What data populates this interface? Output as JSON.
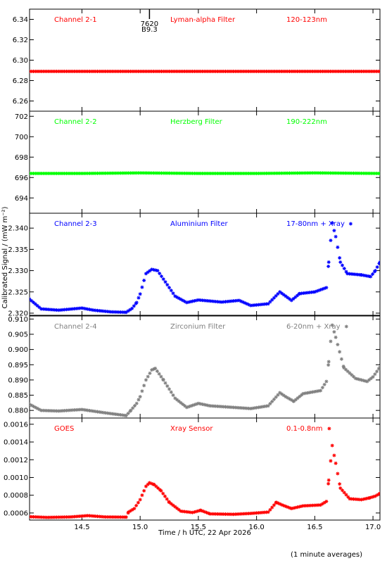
{
  "chart_data": {
    "type": "scatter",
    "xlim": [
      14.05,
      17.06
    ],
    "x_ticks": [
      14.5,
      15.0,
      15.5,
      16.0,
      16.5,
      17.0
    ],
    "x_tick_labels": [
      "14.5",
      "15.0",
      "15.5",
      "16.0",
      "16.5",
      "17.0"
    ],
    "xlabel": "Time / h UTC, 22 Apr 2026",
    "ylabel": "Calibrated Signal / (mW m⁻²)",
    "note": "(1 minute averages)",
    "marker": "asterisk",
    "grid": false,
    "panels": [
      {
        "name": "Channel 2-1",
        "filter": "Lyman-alpha Filter",
        "band": "120-123nm",
        "color": "#ff0000",
        "ylim": [
          6.25,
          6.35
        ],
        "y_ticks": [
          6.26,
          6.28,
          6.3,
          6.32,
          6.34
        ],
        "y_tick_labels": [
          "6.26",
          "6.28",
          "6.30",
          "6.32",
          "6.34"
        ],
        "flare_marker": {
          "x": 15.08,
          "label_top": "7620",
          "label_bottom": "B9.3"
        },
        "series": [
          [
            14.05,
            6.289
          ],
          [
            14.5,
            6.289
          ],
          [
            15.0,
            6.289
          ],
          [
            15.5,
            6.289
          ],
          [
            16.0,
            6.289
          ],
          [
            16.5,
            6.289
          ],
          [
            17.06,
            6.289
          ]
        ]
      },
      {
        "name": "Channel 2-2",
        "filter": "Herzberg Filter",
        "band": "190-222nm",
        "color": "#00ff00",
        "ylim": [
          692.5,
          702.5
        ],
        "y_ticks": [
          694,
          696,
          698,
          700,
          702
        ],
        "y_tick_labels": [
          "694",
          "696",
          "698",
          "700",
          "702"
        ],
        "series": [
          [
            14.05,
            696.4
          ],
          [
            14.5,
            696.4
          ],
          [
            15.0,
            696.45
          ],
          [
            15.5,
            696.4
          ],
          [
            16.0,
            696.4
          ],
          [
            16.5,
            696.45
          ],
          [
            17.06,
            696.4
          ]
        ]
      },
      {
        "name": "Channel 2-3",
        "filter": "Aluminium Filter",
        "band": "17-80nm + Xray",
        "color": "#0000ff",
        "ylim": [
          2.3195,
          2.3435
        ],
        "y_ticks": [
          2.32,
          2.325,
          2.33,
          2.335,
          2.34
        ],
        "y_tick_labels": [
          "2.320",
          "2.325",
          "2.330",
          "2.335",
          "2.340"
        ],
        "series": [
          [
            14.05,
            2.3233
          ],
          [
            14.15,
            2.321
          ],
          [
            14.3,
            2.3207
          ],
          [
            14.5,
            2.3212
          ],
          [
            14.6,
            2.3207
          ],
          [
            14.75,
            2.3203
          ],
          [
            14.88,
            2.3202
          ],
          [
            14.93,
            2.3211
          ],
          [
            14.97,
            2.3225
          ],
          [
            15.0,
            2.3245
          ],
          [
            15.05,
            2.3293
          ],
          [
            15.1,
            2.3303
          ],
          [
            15.15,
            2.33
          ],
          [
            15.2,
            2.328
          ],
          [
            15.25,
            2.326
          ],
          [
            15.3,
            2.324
          ],
          [
            15.4,
            2.3225
          ],
          [
            15.5,
            2.3231
          ],
          [
            15.7,
            2.3226
          ],
          [
            15.85,
            2.323
          ],
          [
            15.95,
            2.3218
          ],
          [
            16.1,
            2.3222
          ],
          [
            16.2,
            2.325
          ],
          [
            16.25,
            2.324
          ],
          [
            16.3,
            2.323
          ],
          [
            16.37,
            2.3246
          ],
          [
            16.5,
            2.325
          ],
          [
            16.6,
            2.326
          ],
          [
            16.62,
            2.332
          ],
          [
            16.65,
            2.3412
          ],
          [
            16.68,
            2.338
          ],
          [
            16.72,
            2.332
          ],
          [
            16.78,
            2.3293
          ],
          [
            16.9,
            2.329
          ],
          [
            16.98,
            2.3286
          ],
          [
            17.02,
            2.33
          ],
          [
            17.06,
            2.332
          ]
        ]
      },
      {
        "name": "Channel 2-4",
        "filter": "Zirconium Filter",
        "band": "6-20nm + Xray",
        "color": "#808080",
        "ylim": [
          0.8775,
          0.911
        ],
        "y_ticks": [
          0.88,
          0.885,
          0.89,
          0.895,
          0.9,
          0.905,
          0.91
        ],
        "y_tick_labels": [
          "0.880",
          "0.885",
          "0.890",
          "0.895",
          "0.900",
          "0.905",
          "0.910"
        ],
        "series": [
          [
            14.05,
            0.882
          ],
          [
            14.15,
            0.88
          ],
          [
            14.3,
            0.8798
          ],
          [
            14.5,
            0.8803
          ],
          [
            14.7,
            0.8792
          ],
          [
            14.88,
            0.8783
          ],
          [
            14.92,
            0.88
          ],
          [
            14.97,
            0.8823
          ],
          [
            15.0,
            0.8845
          ],
          [
            15.05,
            0.89
          ],
          [
            15.1,
            0.8933
          ],
          [
            15.13,
            0.8938
          ],
          [
            15.2,
            0.89
          ],
          [
            15.3,
            0.884
          ],
          [
            15.4,
            0.881
          ],
          [
            15.5,
            0.8823
          ],
          [
            15.6,
            0.8815
          ],
          [
            15.8,
            0.881
          ],
          [
            15.95,
            0.8806
          ],
          [
            16.1,
            0.8815
          ],
          [
            16.2,
            0.8858
          ],
          [
            16.25,
            0.8845
          ],
          [
            16.32,
            0.883
          ],
          [
            16.4,
            0.8855
          ],
          [
            16.55,
            0.8865
          ],
          [
            16.6,
            0.8895
          ],
          [
            16.62,
            0.896
          ],
          [
            16.65,
            0.908
          ],
          [
            16.68,
            0.904
          ],
          [
            16.75,
            0.894
          ],
          [
            16.85,
            0.8905
          ],
          [
            16.95,
            0.8895
          ],
          [
            17.0,
            0.891
          ],
          [
            17.06,
            0.8942
          ]
        ]
      },
      {
        "name": "GOES",
        "filter": "Xray Sensor",
        "band": "0.1-0.8nm",
        "color": "#ff0000",
        "ylim": [
          0.00052,
          0.00167
        ],
        "y_ticks": [
          0.0006,
          0.0008,
          0.001,
          0.0012,
          0.0014,
          0.0016
        ],
        "y_tick_labels": [
          "0.0006",
          "0.0008",
          "0.0010",
          "0.0012",
          "0.0014",
          "0.0016"
        ],
        "series": [
          [
            14.05,
            0.000558
          ],
          [
            14.2,
            0.00055
          ],
          [
            14.4,
            0.000555
          ],
          [
            14.55,
            0.00057
          ],
          [
            14.7,
            0.000555
          ],
          [
            14.88,
            0.000553
          ],
          [
            14.9,
            0.00061
          ],
          [
            14.95,
            0.00065
          ],
          [
            15.0,
            0.00075
          ],
          [
            15.05,
            0.0009
          ],
          [
            15.08,
            0.00094
          ],
          [
            15.12,
            0.00092
          ],
          [
            15.18,
            0.00085
          ],
          [
            15.25,
            0.00072
          ],
          [
            15.35,
            0.00062
          ],
          [
            15.45,
            0.000605
          ],
          [
            15.52,
            0.00063
          ],
          [
            15.6,
            0.00059
          ],
          [
            15.8,
            0.000585
          ],
          [
            15.95,
            0.000595
          ],
          [
            16.1,
            0.00061
          ],
          [
            16.17,
            0.00072
          ],
          [
            16.22,
            0.00069
          ],
          [
            16.3,
            0.00065
          ],
          [
            16.4,
            0.00068
          ],
          [
            16.55,
            0.00069
          ],
          [
            16.6,
            0.00073
          ],
          [
            16.62,
            0.00097
          ],
          [
            16.65,
            0.00136
          ],
          [
            16.68,
            0.00116
          ],
          [
            16.72,
            0.00088
          ],
          [
            16.8,
            0.00076
          ],
          [
            16.9,
            0.00075
          ],
          [
            16.97,
            0.00077
          ],
          [
            17.02,
            0.00079
          ],
          [
            17.06,
            0.00082
          ]
        ]
      }
    ]
  }
}
